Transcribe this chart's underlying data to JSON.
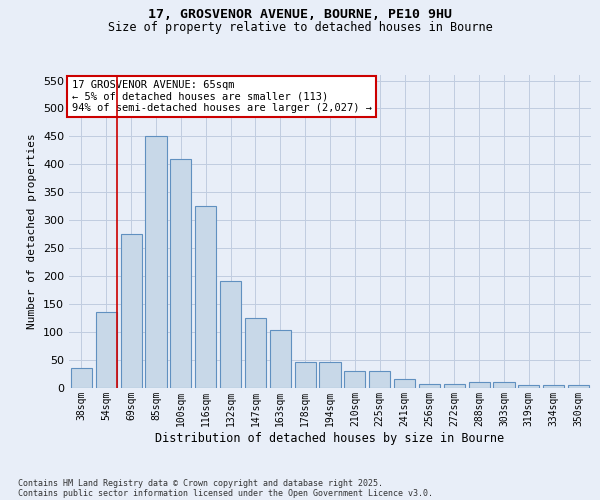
{
  "title1": "17, GROSVENOR AVENUE, BOURNE, PE10 9HU",
  "title2": "Size of property relative to detached houses in Bourne",
  "xlabel": "Distribution of detached houses by size in Bourne",
  "ylabel": "Number of detached properties",
  "categories": [
    "38sqm",
    "54sqm",
    "69sqm",
    "85sqm",
    "100sqm",
    "116sqm",
    "132sqm",
    "147sqm",
    "163sqm",
    "178sqm",
    "194sqm",
    "210sqm",
    "225sqm",
    "241sqm",
    "256sqm",
    "272sqm",
    "288sqm",
    "303sqm",
    "319sqm",
    "334sqm",
    "350sqm"
  ],
  "values": [
    35,
    135,
    275,
    450,
    410,
    325,
    190,
    125,
    103,
    46,
    46,
    30,
    30,
    15,
    6,
    6,
    10,
    10,
    5,
    5,
    5
  ],
  "bar_color": "#c8d8e8",
  "bar_edge_color": "#6090c0",
  "grid_color": "#c0cce0",
  "background_color": "#e8eef8",
  "vline_color": "#cc0000",
  "vline_position": 1.43,
  "annotation_text": "17 GROSVENOR AVENUE: 65sqm\n← 5% of detached houses are smaller (113)\n94% of semi-detached houses are larger (2,027) →",
  "annotation_box_facecolor": "#ffffff",
  "annotation_box_edgecolor": "#cc0000",
  "footnote1": "Contains HM Land Registry data © Crown copyright and database right 2025.",
  "footnote2": "Contains public sector information licensed under the Open Government Licence v3.0.",
  "ylim": [
    0,
    560
  ],
  "yticks": [
    0,
    50,
    100,
    150,
    200,
    250,
    300,
    350,
    400,
    450,
    500,
    550
  ]
}
